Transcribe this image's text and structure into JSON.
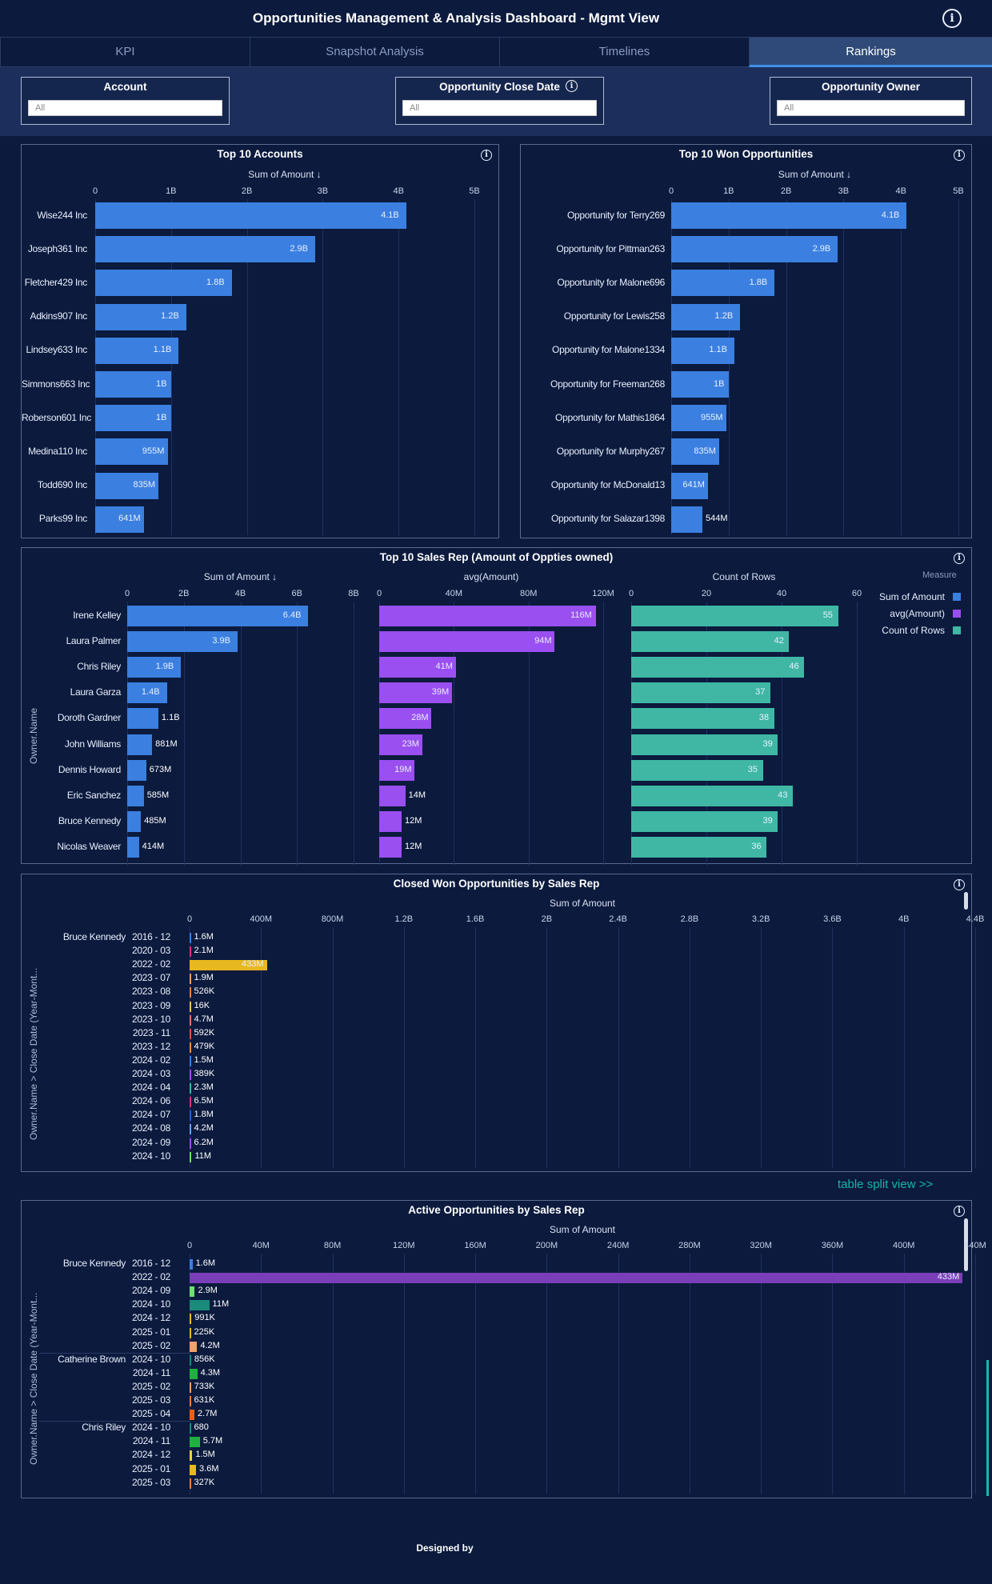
{
  "header": {
    "title": "Opportunities Management & Analysis Dashboard - Mgmt View",
    "info_icon": "info-icon"
  },
  "tabs": [
    {
      "label": "KPI",
      "active": false
    },
    {
      "label": "Snapshot Analysis",
      "active": false
    },
    {
      "label": "Timelines",
      "active": false
    },
    {
      "label": "Rankings",
      "active": true
    }
  ],
  "filters": {
    "account": {
      "label": "Account",
      "value": "All"
    },
    "close_date": {
      "label": "Opportunity Close Date",
      "value": "All"
    },
    "owner": {
      "label": "Opportunity Owner",
      "value": "All"
    }
  },
  "colors": {
    "blue": "#3b7fe0",
    "purple": "#9a4ff0",
    "teal": "#3fb7a4",
    "background": "#0b1a3d"
  },
  "chart_data": [
    {
      "type": "bar",
      "title": "Top 10 Accounts",
      "xlabel": "Sum of Amount ↓",
      "ticks": [
        "0",
        "1B",
        "2B",
        "3B",
        "4B",
        "5B"
      ],
      "xlim": [
        0,
        5000000000
      ],
      "categories": [
        "Wise244 Inc",
        "Joseph361 Inc",
        "Fletcher429 Inc",
        "Adkins907 Inc",
        "Lindsey633 Inc",
        "Simmons663 Inc",
        "Roberson601 Inc",
        "Medina110 Inc",
        "Todd690 Inc",
        "Parks99 Inc"
      ],
      "values": [
        4100000000,
        2900000000,
        1800000000,
        1200000000,
        1100000000,
        1000000000,
        1000000000,
        955000000,
        835000000,
        641000000
      ],
      "labels": [
        "4.1B",
        "2.9B",
        "1.8B",
        "1.2B",
        "1.1B",
        "1B",
        "1B",
        "955M",
        "835M",
        "641M"
      ]
    },
    {
      "type": "bar",
      "title": "Top 10 Won Opportunities",
      "xlabel": "Sum of Amount ↓",
      "ticks": [
        "0",
        "1B",
        "2B",
        "3B",
        "4B",
        "5B"
      ],
      "xlim": [
        0,
        5000000000
      ],
      "categories": [
        "Opportunity for Terry269",
        "Opportunity for Pittman263",
        "Opportunity for Malone696",
        "Opportunity for Lewis258",
        "Opportunity for Malone1334",
        "Opportunity for Freeman268",
        "Opportunity for Mathis1864",
        "Opportunity for Murphy267",
        "Opportunity for McDonald13",
        "Opportunity for Salazar1398"
      ],
      "values": [
        4100000000,
        2900000000,
        1800000000,
        1200000000,
        1100000000,
        1000000000,
        955000000,
        835000000,
        641000000,
        544000000
      ],
      "labels": [
        "4.1B",
        "2.9B",
        "1.8B",
        "1.2B",
        "1.1B",
        "1B",
        "955M",
        "835M",
        "641M",
        "544M"
      ]
    },
    {
      "type": "bar",
      "title": "Top 10 Sales Rep (Amount of Oppties owned)",
      "ylabel": "Owner.Name",
      "legend_title": "Measure",
      "categories": [
        "Irene Kelley",
        "Laura Palmer",
        "Chris Riley",
        "Laura Garza",
        "Doroth Gardner",
        "John Williams",
        "Dennis Howard",
        "Eric Sanchez",
        "Bruce Kennedy",
        "Nicolas Weaver"
      ],
      "series": [
        {
          "name": "Sum of Amount",
          "axis_title": "Sum of Amount ↓",
          "ticks": [
            "0",
            "2B",
            "4B",
            "6B",
            "8B"
          ],
          "xlim": [
            0,
            8000000000
          ],
          "color": "#3b7fe0",
          "values": [
            6400000000,
            3900000000,
            1900000000,
            1400000000,
            1100000000,
            881000000,
            673000000,
            585000000,
            485000000,
            414000000
          ],
          "labels": [
            "6.4B",
            "3.9B",
            "1.9B",
            "1.4B",
            "1.1B",
            "881M",
            "673M",
            "585M",
            "485M",
            "414M"
          ]
        },
        {
          "name": "avg(Amount)",
          "axis_title": "avg(Amount)",
          "ticks": [
            "0",
            "40M",
            "80M",
            "120M"
          ],
          "xlim": [
            0,
            120000000
          ],
          "color": "#9a4ff0",
          "values": [
            116000000,
            94000000,
            41000000,
            39000000,
            28000000,
            23000000,
            19000000,
            14000000,
            12000000,
            12000000
          ],
          "labels": [
            "116M",
            "94M",
            "41M",
            "39M",
            "28M",
            "23M",
            "19M",
            "14M",
            "12M",
            "12M"
          ]
        },
        {
          "name": "Count of Rows",
          "axis_title": "Count of Rows",
          "ticks": [
            "0",
            "20",
            "40",
            "60"
          ],
          "xlim": [
            0,
            60
          ],
          "color": "#3fb7a4",
          "values": [
            55,
            42,
            46,
            37,
            38,
            39,
            35,
            43,
            39,
            36
          ],
          "labels": [
            "55",
            "42",
            "46",
            "37",
            "38",
            "39",
            "35",
            "43",
            "39",
            "36"
          ]
        }
      ]
    },
    {
      "type": "bar",
      "title": "Closed Won Opportunities by Sales Rep",
      "xlabel": "Sum of Amount",
      "ylabel": "Owner.Name > Close Date (Year-Mont...",
      "ticks": [
        "0",
        "400M",
        "800M",
        "1.2B",
        "1.6B",
        "2B",
        "2.4B",
        "2.8B",
        "3.2B",
        "3.6B",
        "4B",
        "4.4B"
      ],
      "xlim": [
        0,
        4400000000
      ],
      "owner": "Bruce Kennedy",
      "categories": [
        "2016 - 12",
        "2020 - 03",
        "2022 - 02",
        "2023 - 07",
        "2023 - 08",
        "2023 - 09",
        "2023 - 10",
        "2023 - 11",
        "2023 - 12",
        "2024 - 02",
        "2024 - 03",
        "2024 - 04",
        "2024 - 06",
        "2024 - 07",
        "2024 - 08",
        "2024 - 09",
        "2024 - 10"
      ],
      "values": [
        1600000,
        2100000,
        433000000,
        1900000,
        526000,
        16000,
        4700000,
        592000,
        479000,
        1500000,
        389000,
        2300000,
        6500000,
        1800000,
        4200000,
        6200000,
        11000000
      ],
      "labels": [
        "1.6M",
        "2.1M",
        "433M",
        "1.9M",
        "526K",
        "16K",
        "4.7M",
        "592K",
        "479K",
        "1.5M",
        "389K",
        "2.3M",
        "6.5M",
        "1.8M",
        "4.2M",
        "6.2M",
        "11M"
      ],
      "colors": [
        "#3b7fe0",
        "#e0307a",
        "#e8b820",
        "#f2a070",
        "#f08040",
        "#f2c060",
        "#f07080",
        "#e05050",
        "#e89040",
        "#3b7fe0",
        "#9a4ff0",
        "#3fb7a4",
        "#e0307a",
        "#2a5fd0",
        "#6aa0f0",
        "#9a4ff0",
        "#70e070"
      ]
    },
    {
      "type": "bar",
      "title": "Active Opportunities by Sales Rep",
      "xlabel": "Sum of Amount",
      "ylabel": "Owner.Name > Close Date (Year-Mont...",
      "ticks": [
        "0",
        "40M",
        "80M",
        "120M",
        "160M",
        "200M",
        "240M",
        "280M",
        "320M",
        "360M",
        "400M",
        "440M"
      ],
      "xlim": [
        0,
        440000000
      ],
      "groups": [
        {
          "owner": "Bruce Kennedy",
          "categories": [
            "2016 - 12",
            "2022 - 02",
            "2024 - 09",
            "2024 - 10",
            "2024 - 12",
            "2025 - 01",
            "2025 - 02"
          ],
          "values": [
            1600000,
            433000000,
            2900000,
            11000000,
            991000,
            225000,
            4200000
          ],
          "labels": [
            "1.6M",
            "433M",
            "2.9M",
            "11M",
            "991K",
            "225K",
            "4.2M"
          ],
          "colors": [
            "#3b7fe0",
            "#7a3fb8",
            "#70e070",
            "#1a8a7a",
            "#e8c020",
            "#e8b820",
            "#f2a070"
          ]
        },
        {
          "owner": "Catherine Brown",
          "categories": [
            "2024 - 10",
            "2024 - 11",
            "2025 - 02",
            "2025 - 03",
            "2025 - 04"
          ],
          "values": [
            856000,
            4300000,
            733000,
            631000,
            2700000
          ],
          "labels": [
            "856K",
            "4.3M",
            "733K",
            "631K",
            "2.7M"
          ],
          "colors": [
            "#1a8a7a",
            "#20b040",
            "#f2a070",
            "#f08040",
            "#f06010"
          ]
        },
        {
          "owner": "Chris Riley",
          "categories": [
            "2024 - 10",
            "2024 - 11",
            "2024 - 12",
            "2025 - 01",
            "2025 - 03"
          ],
          "values": [
            680,
            5700000,
            1500000,
            3600000,
            327000
          ],
          "labels": [
            "680",
            "5.7M",
            "1.5M",
            "3.6M",
            "327K"
          ],
          "colors": [
            "#1a8a7a",
            "#20b040",
            "#f0d040",
            "#e8b820",
            "#f08040"
          ]
        }
      ]
    }
  ],
  "legend": {
    "title": "Measure",
    "items": [
      "Sum of Amount",
      "avg(Amount)",
      "Count of Rows"
    ]
  },
  "table_split_link": "table split view >>",
  "footer": "Designed by"
}
